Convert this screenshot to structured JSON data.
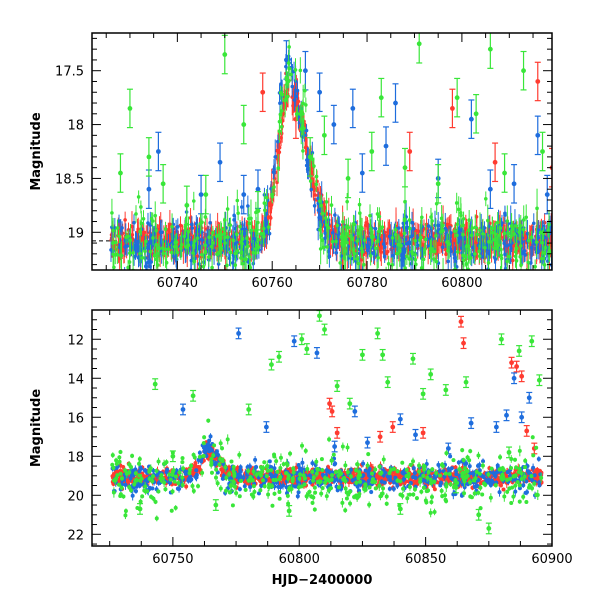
{
  "chart_data": [
    {
      "type": "scatter",
      "title": "",
      "xlabel": "",
      "ylabel": "Magnitude",
      "xlim": [
        60722,
        60819
      ],
      "ylim": [
        19.35,
        17.15
      ],
      "y_inverted": true,
      "xticks": [
        60740,
        60760,
        60780,
        60800
      ],
      "yticks": [
        17.5,
        18,
        18.5,
        19
      ],
      "ytick_labels": [
        "17.5",
        "18",
        "18.5",
        "19"
      ],
      "grid": false,
      "legend": "none",
      "dashed_baseline": {
        "y": 19.08,
        "x_start": 60722,
        "x_end": 60728,
        "color": "#000000"
      },
      "series": [
        {
          "color": "#ff3b30",
          "baseline": 19.08,
          "scatter": 0.07,
          "flare": {
            "peak_x": 60763.5,
            "peak_y": 17.65,
            "rise_width": 3.0,
            "decay_width": 5.5
          },
          "x_range": [
            60726,
            60819
          ],
          "n_points": 900,
          "outliers": [
            [
              60758,
              17.7
            ],
            [
              60765,
              17.95
            ],
            [
              60789,
              18.25
            ],
            [
              60798,
              17.85
            ],
            [
              60807,
              18.35
            ],
            [
              60816,
              17.6
            ],
            [
              60819,
              18.4
            ]
          ]
        },
        {
          "color": "#1e6ddd",
          "baseline": 19.1,
          "scatter": 0.11,
          "flare": {
            "peak_x": 60763.2,
            "peak_y": 17.45,
            "rise_width": 3.0,
            "decay_width": 5.0
          },
          "x_range": [
            60726,
            60819
          ],
          "n_points": 520,
          "outliers": [
            [
              60734,
              18.6
            ],
            [
              60736,
              18.25
            ],
            [
              60745,
              18.65
            ],
            [
              60749,
              18.35
            ],
            [
              60754,
              18.65
            ],
            [
              60757,
              18.6
            ],
            [
              60763,
              17.4
            ],
            [
              60767,
              17.5
            ],
            [
              60770,
              17.7
            ],
            [
              60773,
              18.0
            ],
            [
              60777,
              17.85
            ],
            [
              60779,
              18.45
            ],
            [
              60784,
              18.2
            ],
            [
              60786,
              17.8
            ],
            [
              60795,
              18.5
            ],
            [
              60802,
              17.95
            ],
            [
              60806,
              18.6
            ],
            [
              60811,
              18.55
            ],
            [
              60816,
              18.1
            ],
            [
              60818,
              18.65
            ]
          ]
        },
        {
          "color": "#39e639",
          "baseline": 19.1,
          "scatter": 0.16,
          "flare": {
            "peak_x": 60763.3,
            "peak_y": 17.6,
            "rise_width": 3.0,
            "decay_width": 5.5
          },
          "x_range": [
            60726,
            60819
          ],
          "n_points": 420,
          "outliers": [
            [
              60728,
              18.45
            ],
            [
              60730,
              17.85
            ],
            [
              60734,
              18.3
            ],
            [
              60737,
              18.55
            ],
            [
              60742,
              18.75
            ],
            [
              60746,
              18.65
            ],
            [
              60750,
              17.35
            ],
            [
              60754,
              18.0
            ],
            [
              60757,
              18.8
            ],
            [
              60768,
              18.3
            ],
            [
              60771,
              18.1
            ],
            [
              60776,
              18.5
            ],
            [
              60781,
              18.25
            ],
            [
              60783,
              17.75
            ],
            [
              60788,
              18.4
            ],
            [
              60791,
              17.25
            ],
            [
              60795,
              18.55
            ],
            [
              60799,
              17.75
            ],
            [
              60803,
              17.9
            ],
            [
              60806,
              17.3
            ],
            [
              60809,
              18.45
            ],
            [
              60813,
              17.5
            ],
            [
              60817,
              18.25
            ]
          ]
        }
      ]
    },
    {
      "type": "scatter",
      "title": "",
      "xlabel": "HJD−2400000",
      "ylabel": "Magnitude",
      "xlim": [
        60718,
        60900
      ],
      "ylim": [
        22.6,
        10.5
      ],
      "y_inverted": true,
      "xticks": [
        60750,
        60800,
        60850,
        60900
      ],
      "yticks": [
        12,
        14,
        16,
        18,
        20,
        22
      ],
      "ytick_labels": [
        "12",
        "14",
        "16",
        "18",
        "20",
        "22"
      ],
      "grid": false,
      "legend": "none",
      "series": [
        {
          "color": "#ff3b30",
          "baseline": 19.05,
          "scatter": 0.22,
          "flare": {
            "peak_x": 60763.5,
            "peak_y": 17.65,
            "rise_width": 3.0,
            "decay_width": 5.5
          },
          "x_range": [
            60726,
            60896
          ],
          "n_points": 1100,
          "outliers": [
            [
              60812,
              15.3
            ],
            [
              60813,
              15.7
            ],
            [
              60815,
              16.8
            ],
            [
              60832,
              17.0
            ],
            [
              60837,
              16.5
            ],
            [
              60849,
              16.8
            ],
            [
              60864,
              11.1
            ],
            [
              60865,
              12.2
            ],
            [
              60884,
              13.2
            ],
            [
              60886,
              13.4
            ],
            [
              60888,
              13.9
            ],
            [
              60890,
              16.7
            ],
            [
              60893,
              17.6
            ]
          ]
        },
        {
          "color": "#1e6ddd",
          "baseline": 19.1,
          "scatter": 0.4,
          "flare": {
            "peak_x": 60763.2,
            "peak_y": 17.45,
            "rise_width": 3.0,
            "decay_width": 5.0
          },
          "x_range": [
            60726,
            60896
          ],
          "n_points": 520,
          "outliers": [
            [
              60754,
              15.6
            ],
            [
              60776,
              11.7
            ],
            [
              60787,
              16.5
            ],
            [
              60798,
              12.1
            ],
            [
              60807,
              12.7
            ],
            [
              60814,
              17.5
            ],
            [
              60822,
              15.7
            ],
            [
              60827,
              17.3
            ],
            [
              60840,
              16.1
            ],
            [
              60846,
              16.9
            ],
            [
              60859,
              17.6
            ],
            [
              60868,
              16.3
            ],
            [
              60878,
              16.5
            ],
            [
              60882,
              15.9
            ],
            [
              60885,
              14.0
            ],
            [
              60888,
              16.0
            ],
            [
              60891,
              15.0
            ]
          ]
        },
        {
          "color": "#39e639",
          "baseline": 19.2,
          "scatter": 0.75,
          "flare": {
            "peak_x": 60763.3,
            "peak_y": 17.6,
            "rise_width": 3.0,
            "decay_width": 5.5
          },
          "x_range": [
            60726,
            60896
          ],
          "n_points": 460,
          "outliers": [
            [
              60737,
              20.7
            ],
            [
              60743,
              14.3
            ],
            [
              60750,
              18.0
            ],
            [
              60758,
              14.9
            ],
            [
              60767,
              20.5
            ],
            [
              60773,
              19.5
            ],
            [
              60780,
              15.6
            ],
            [
              60789,
              13.3
            ],
            [
              60792,
              12.9
            ],
            [
              60796,
              20.8
            ],
            [
              60801,
              12.0
            ],
            [
              60803,
              12.5
            ],
            [
              60808,
              10.8
            ],
            [
              60810,
              11.5
            ],
            [
              60815,
              14.4
            ],
            [
              60820,
              15.3
            ],
            [
              60825,
              12.8
            ],
            [
              60831,
              11.7
            ],
            [
              60833,
              12.8
            ],
            [
              60835,
              14.2
            ],
            [
              60840,
              20.7
            ],
            [
              60845,
              13.0
            ],
            [
              60849,
              14.8
            ],
            [
              60852,
              13.8
            ],
            [
              60858,
              14.6
            ],
            [
              60862,
              19.6
            ],
            [
              60866,
              14.2
            ],
            [
              60871,
              21.0
            ],
            [
              60875,
              21.7
            ],
            [
              60880,
              12.0
            ],
            [
              60883,
              17.8
            ],
            [
              60887,
              12.6
            ],
            [
              60892,
              12.1
            ],
            [
              60895,
              14.1
            ]
          ]
        }
      ]
    }
  ]
}
